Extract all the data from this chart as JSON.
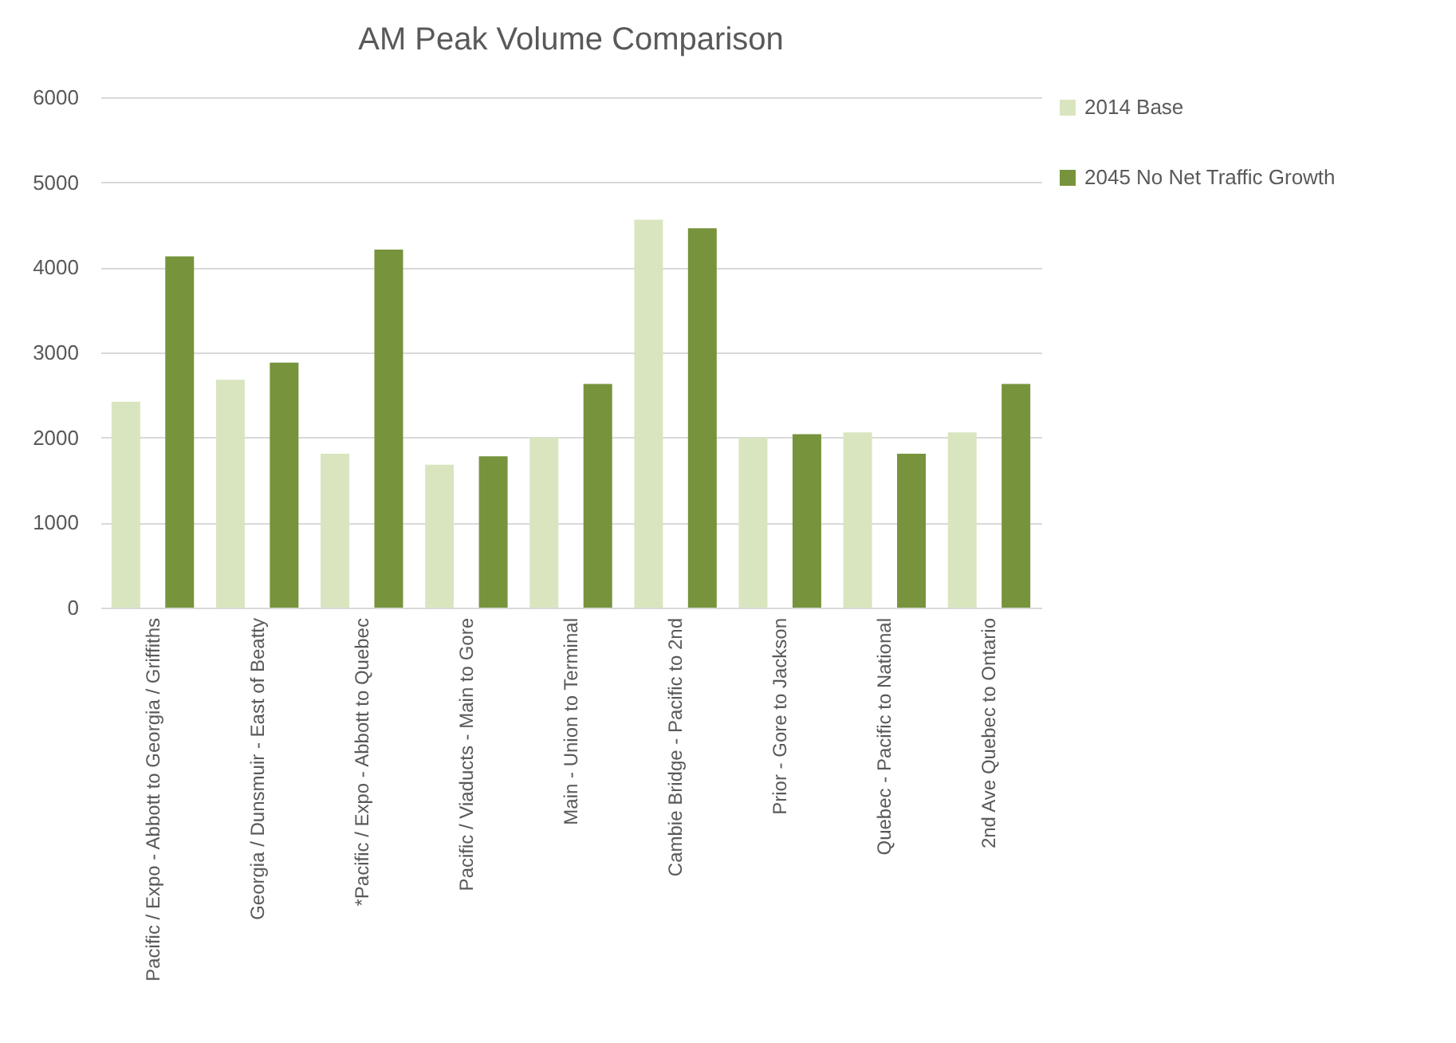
{
  "chart_data": {
    "type": "bar",
    "title": "AM Peak Volume Comparison",
    "categories": [
      "Pacific / Expo - Abbott to Georgia / Griffiths",
      "Georgia / Dunsmuir - East of Beatty",
      "*Pacific / Expo - Abbott to Quebec",
      "Pacific / Viaducts - Main to Gore",
      "Main - Union to Terminal",
      "Cambie Bridge - Pacific to 2nd",
      "Prior - Gore to Jackson",
      "Quebec - Pacific to National",
      "2nd Ave Quebec to Ontario"
    ],
    "series": [
      {
        "name": "2014 Base",
        "color": "#d9e5bf",
        "values": [
          2420,
          2680,
          1810,
          1680,
          2000,
          4560,
          2000,
          2060,
          2060
        ]
      },
      {
        "name": "2045 No Net Traffic Growth",
        "color": "#77933c",
        "values": [
          4130,
          2880,
          4210,
          1780,
          2630,
          4460,
          2040,
          1810,
          2630
        ]
      }
    ],
    "ylim": [
      0,
      6000
    ],
    "yticks": [
      0,
      1000,
      2000,
      3000,
      4000,
      5000,
      6000
    ],
    "grid": "y",
    "legend": "right"
  }
}
